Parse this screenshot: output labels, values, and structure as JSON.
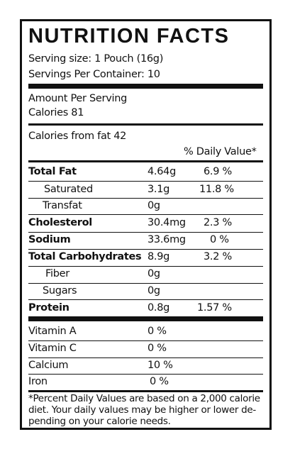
{
  "title": "NUTRITION FACTS",
  "serving_size": "Serving size: 1 Pouch (16g)",
  "servings_per_container": "Servings Per Container: 10",
  "amount_per_serving": "Amount Per Serving",
  "calories": "Calories  81",
  "calories_from_fat": "Calories from fat 42",
  "dv_header": "% Daily Value*",
  "nutrients": [
    {
      "name": "Total Fat",
      "amount": "4.64g",
      "dv": "6.9 %"
    },
    {
      "name": "Saturated",
      "amount": "3.1g",
      "dv": "11.8 %"
    },
    {
      "name": "Transfat",
      "amount": "0g",
      "dv": ""
    },
    {
      "name": "Cholesterol",
      "amount": "30.4mg",
      "dv": "2.3 %"
    },
    {
      "name": "Sodium",
      "amount": "33.6mg",
      "dv": "0 %"
    },
    {
      "name": "Total Carbohydrates",
      "amount": "8.9g",
      "dv": "3.2 %"
    },
    {
      "name": "Fiber",
      "amount": "0g",
      "dv": ""
    },
    {
      "name": "Sugars",
      "amount": "0g",
      "dv": ""
    },
    {
      "name": "Protein",
      "amount": "0.8g",
      "dv": "1.57 %"
    }
  ],
  "vitamins": [
    {
      "name": "Vitamin A",
      "dv": "0 %"
    },
    {
      "name": "Vitamin C",
      "dv": "0 %"
    },
    {
      "name": "Calcium",
      "dv": "10 %"
    },
    {
      "name": "Iron",
      "dv": "0 %"
    }
  ],
  "footnote": [
    "*Percent Daily Values are based on a 2,000 calorie",
    "diet. Your daily values may be higher or lower de-",
    "pending on your calorie needs."
  ]
}
